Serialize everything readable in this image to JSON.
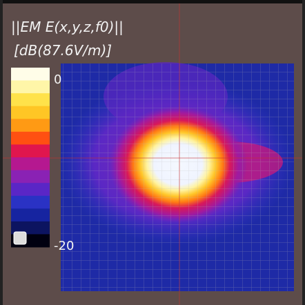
{
  "overlay": {
    "title": "||EM E(x,y,z,f0)||",
    "unit": "[dB(87.6V/m)]",
    "colorbar": {
      "max": 0,
      "min": -20,
      "colors": [
        "#fffde8",
        "#fff6a8",
        "#ffe24a",
        "#ffc625",
        "#ff9a14",
        "#ff5012",
        "#e0164e",
        "#b51890",
        "#8a22b4",
        "#5a26c6",
        "#2a32c4",
        "#1624a0",
        "#0c1460",
        "#000010"
      ]
    }
  }
}
